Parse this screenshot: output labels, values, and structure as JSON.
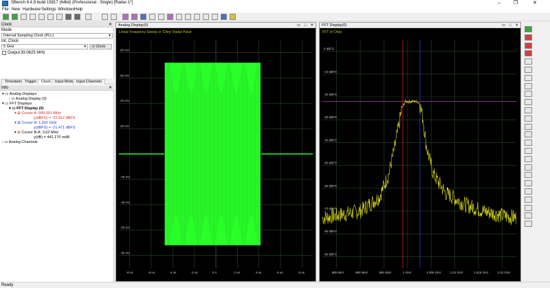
{
  "titlebar": {
    "title": "SBench 6.4.9 build 15817 (64bit) (Professional - Single)   [Radar-1*]",
    "controls": [
      "–",
      "❐",
      "✕"
    ]
  },
  "menubar": [
    "File",
    "New",
    "Hardware",
    "Settings",
    "Windows",
    "Help"
  ],
  "clock_panel": {
    "header": "Clock",
    "mode_label": "Mode",
    "mode_value": "Internal Sampling Clock (PLL)",
    "int_clock_label": "Int. Clock",
    "int_clock_value": "5 GHz",
    "clock_button": "Clock",
    "output_label": "Output",
    "output_value": "39.0625 MHz"
  },
  "tabs": [
    "Timestamp",
    "Trigger",
    "Clock",
    "Input Mode",
    "Input Channels"
  ],
  "active_tab": "Clock",
  "info_panel": {
    "header": "Info",
    "analog_displays": "Analog Displays",
    "analog_display_0": "Analog Display (0)",
    "fft_displays": "FFT Displays",
    "fft_display_0": "FFT Display (0)",
    "cursor_a": "Cursor A: 999.001 MHz",
    "cursor_a_y": "y(dBFS) = -21.912 dBFS",
    "cursor_b": "Cursor B: 1.002 GHz",
    "cursor_b_y": "y(dBFS) = -21.471 dBFS",
    "cursor_ba": "Cursor B-A: 3.62 MHz",
    "cursor_ba_y": "y(dB) = 441.176 mdB",
    "analog_channels": "Analog Channels",
    "colors": {
      "cursor_a": "#e02020",
      "cursor_b": "#2040d0"
    }
  },
  "status": "Ready",
  "analog": {
    "window_title": "Analog Display(0)",
    "subtitle": "Linear Frequency Sweep or 'Chirp' Radar Pulse",
    "yticks": [
      "80 mV",
      "60 mV",
      "40 mV",
      "20 mV",
      "",
      "-20 mV",
      "-40 mV",
      "-60 mV",
      "-80 mV"
    ],
    "xticks": [
      "-8 us",
      "-6 us",
      "-4 us",
      "-2 us",
      "0 s",
      "2 us",
      "4 us",
      "6 us",
      "8 us"
    ],
    "trace_color": "#2aff2a"
  },
  "fft": {
    "window_title": "FFT Display(0)",
    "subtitle": "FFT of Chirp",
    "yticks": [
      "0 dBFS",
      "-10 dBFS",
      "-20 dBFS",
      "-30 dBFS",
      "-40 dBFS",
      "-50 dBFS",
      "-60 dBFS",
      "-70 dBFS",
      "-80 dBFS",
      "-90 dBFS"
    ],
    "xticks": [
      "985 MHz",
      "990 MHz",
      "995 MHz",
      "1 GHz",
      "1.005 GHz",
      "1.01 GHz",
      "1.015 GHz",
      "1.02 GHz"
    ],
    "trace_color": "#e8e820"
  },
  "chart_data": [
    {
      "type": "line",
      "title": "Linear Frequency Sweep or 'Chirp' Radar Pulse",
      "xlabel": "",
      "ylabel": "",
      "x_unit": "us",
      "y_unit": "mV",
      "xlim": [
        -9,
        9
      ],
      "ylim": [
        -90,
        90
      ],
      "series": [
        {
          "name": "",
          "envelope": [
            [
              -9,
              0.5
            ],
            [
              -4.8,
              0.5
            ],
            [
              -4.7,
              72
            ],
            [
              4.1,
              72
            ],
            [
              4.2,
              0.5
            ],
            [
              9,
              0.5
            ]
          ]
        }
      ]
    },
    {
      "type": "line",
      "title": "FFT of Chirp",
      "xlabel": "",
      "ylabel": "",
      "x_unit": "MHz",
      "y_unit": "dBFS",
      "xlim": [
        982,
        1023
      ],
      "ylim": [
        -95,
        5
      ],
      "cursors": [
        {
          "name": "Cursor A",
          "x": 999.001,
          "y": -21.912
        },
        {
          "name": "Cursor B",
          "x": 1002.62,
          "y": -21.471
        }
      ],
      "series": [
        {
          "name": "",
          "x": [
            982,
            985,
            990,
            994,
            996,
            997.5,
            998.8,
            999.5,
            1001,
            1002,
            1002.6,
            1003.3,
            1004,
            1005.5,
            1008,
            1012,
            1016,
            1020,
            1023
          ],
          "y": [
            -73,
            -72,
            -70,
            -64,
            -54,
            -40,
            -25,
            -22,
            -22,
            -22,
            -23,
            -30,
            -42,
            -54,
            -62,
            -67,
            -70,
            -72,
            -73
          ]
        }
      ]
    }
  ]
}
